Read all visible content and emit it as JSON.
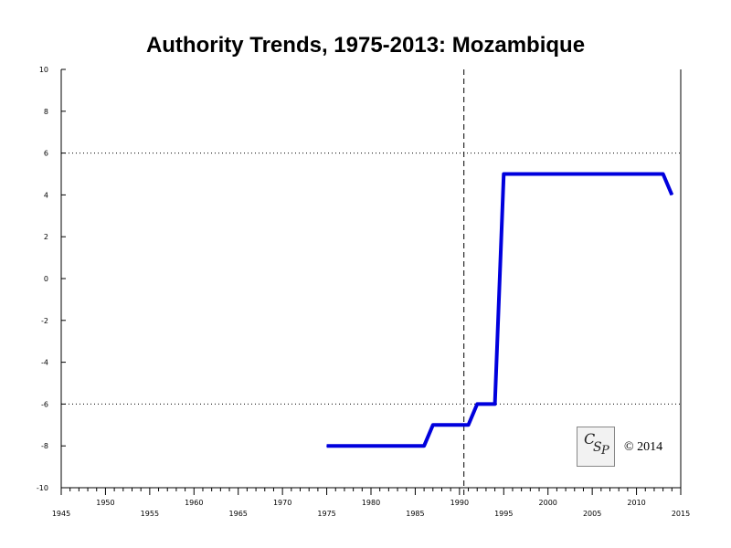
{
  "chart_data": {
    "type": "line",
    "title": "Authority Trends, 1975-2013: Mozambique",
    "xlabel": "",
    "ylabel": "",
    "xlim": [
      1945,
      2015
    ],
    "ylim": [
      -10,
      10
    ],
    "x_ticks_upper": [
      "1950",
      "1960",
      "1970",
      "1980",
      "1990",
      "2000",
      "2010"
    ],
    "x_ticks_lower": [
      "1945",
      "1955",
      "1965",
      "1975",
      "1985",
      "1995",
      "2005",
      "2015"
    ],
    "y_ticks": [
      "10",
      "8",
      "6",
      "4",
      "2",
      "0",
      "-2",
      "-4",
      "-6",
      "-8",
      "-10"
    ],
    "reference_lines_y": [
      6,
      -6
    ],
    "vertical_marker_x": 1990.5,
    "series": [
      {
        "color": "#0000dd",
        "x": [
          1975,
          1986,
          1987,
          1991,
          1992,
          1994,
          1995,
          2013,
          2014
        ],
        "y": [
          -8,
          -8,
          -7,
          -7,
          -6,
          -6,
          5,
          5,
          4
        ]
      }
    ]
  },
  "logo": {
    "text": "CSP"
  },
  "copyright": "© 2014"
}
